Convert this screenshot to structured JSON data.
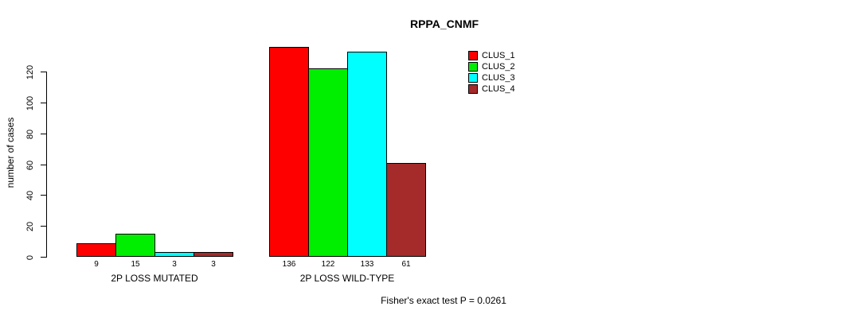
{
  "title": "RPPA_CNMF",
  "y_axis_label": "number of cases",
  "footer": "Fisher's exact test P = 0.0261",
  "chart_data": {
    "type": "bar",
    "title": "RPPA_CNMF",
    "xlabel": "",
    "ylabel": "number of cases",
    "ylim": [
      0,
      140
    ],
    "yticks": [
      0,
      20,
      40,
      60,
      80,
      100,
      120
    ],
    "grid": false,
    "legend_position": "right",
    "categories": [
      "2P LOSS MUTATED",
      "2P LOSS WILD-TYPE"
    ],
    "series": [
      {
        "name": "CLUS_1",
        "color": "#FF0000",
        "values": [
          9,
          136
        ]
      },
      {
        "name": "CLUS_2",
        "color": "#00EE00",
        "values": [
          15,
          122
        ]
      },
      {
        "name": "CLUS_3",
        "color": "#00FFFF",
        "values": [
          3,
          133
        ]
      },
      {
        "name": "CLUS_4",
        "color": "#A52A2A",
        "values": [
          3,
          61
        ]
      }
    ],
    "bar_value_labels": [
      [
        9,
        15,
        3,
        3
      ],
      [
        136,
        122,
        133,
        61
      ]
    ],
    "annotation": "Fisher's exact test P = 0.0261"
  },
  "colors": {
    "bar_border": "#000000",
    "axis": "#000000",
    "background": "#ffffff"
  }
}
